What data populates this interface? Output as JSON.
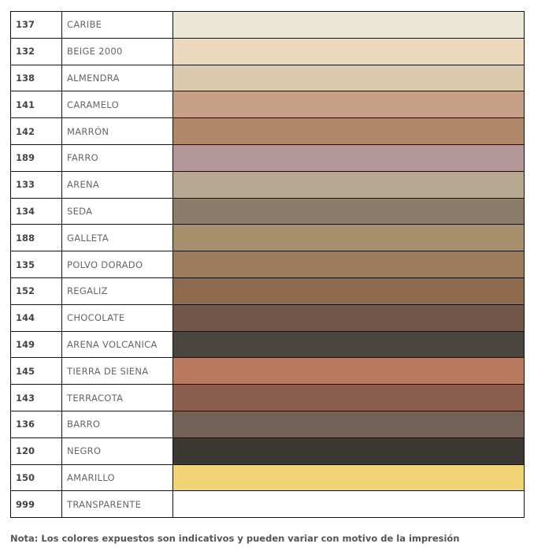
{
  "colors": [
    {
      "code": "137",
      "name": "CARIBE",
      "hex": "#ebe7d6"
    },
    {
      "code": "132",
      "name": "BEIGE 2000",
      "hex": "#ecd8bc"
    },
    {
      "code": "138",
      "name": "ALMENDRA",
      "hex": "#dccaae"
    },
    {
      "code": "141",
      "name": "CARAMELO",
      "hex": "#c6a187"
    },
    {
      "code": "142",
      "name": "MARRÓN",
      "hex": "#ae8769"
    },
    {
      "code": "189",
      "name": "FARRO",
      "hex": "#b39799"
    },
    {
      "code": "133",
      "name": "ARENA",
      "hex": "#b8a892"
    },
    {
      "code": "134",
      "name": "SEDA",
      "hex": "#8c7c6a"
    },
    {
      "code": "188",
      "name": "GALLETA",
      "hex": "#a88f6b"
    },
    {
      "code": "135",
      "name": "POLVO DORADO",
      "hex": "#9b7c5e"
    },
    {
      "code": "152",
      "name": "REGALIZ",
      "hex": "#8e6a4e"
    },
    {
      "code": "144",
      "name": "CHOCOLATE",
      "hex": "#725647"
    },
    {
      "code": "149",
      "name": "ARENA VOLCANICA",
      "hex": "#4b4540"
    },
    {
      "code": "145",
      "name": "TIERRA DE SIENA",
      "hex": "#b87a5f"
    },
    {
      "code": "143",
      "name": "TERRACOTA",
      "hex": "#8a5f50"
    },
    {
      "code": "136",
      "name": "BARRO",
      "hex": "#736157"
    },
    {
      "code": "120",
      "name": "NEGRO",
      "hex": "#3c3935"
    },
    {
      "code": "150",
      "name": "AMARILLO",
      "hex": "#f1d476"
    },
    {
      "code": "999",
      "name": "TRANSPARENTE",
      "hex": "#ffffff"
    }
  ],
  "note": "Nota: Los colores expuestos son indicativos y pueden variar con motivo de la impresión"
}
